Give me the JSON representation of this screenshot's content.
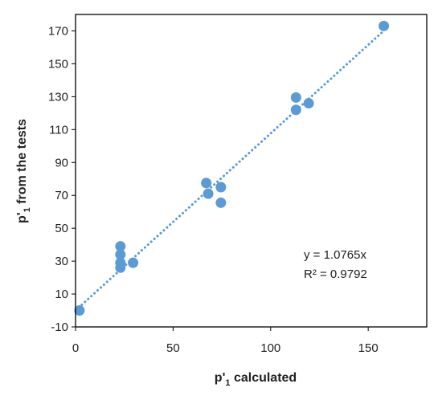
{
  "chart_data": {
    "type": "scatter",
    "title": "",
    "xlabel": {
      "prefix": "p'",
      "sub": "1",
      "suffix": " calculated"
    },
    "ylabel": {
      "prefix": "p'",
      "sub": "1",
      "suffix": " from the tests"
    },
    "xlim": [
      0,
      180
    ],
    "ylim": [
      -10,
      180
    ],
    "xticks": [
      0,
      50,
      100,
      150
    ],
    "yticks": [
      -10,
      10,
      30,
      50,
      70,
      90,
      110,
      130,
      150,
      170
    ],
    "grid": false,
    "colors": {
      "points": "#5b9bd5",
      "trendline": "#5b9bd5",
      "axes": "#000000"
    },
    "series": [
      {
        "points": [
          [
            2,
            0
          ],
          [
            23,
            39
          ],
          [
            23,
            34
          ],
          [
            23,
            29
          ],
          [
            23,
            26
          ],
          [
            29.5,
            29
          ],
          [
            67,
            77.5
          ],
          [
            68,
            71
          ],
          [
            74.5,
            75
          ],
          [
            74.5,
            65.5
          ],
          [
            113,
            129.5
          ],
          [
            113,
            122
          ],
          [
            119.5,
            126
          ],
          [
            158,
            173
          ]
        ]
      }
    ],
    "trendline": {
      "type": "linear",
      "slope": 1.0765,
      "intercept": 0,
      "style": "dotted",
      "x_range": [
        0,
        158
      ]
    },
    "annotations": {
      "equation": "y = 1.0765x",
      "r2": "R² = 0.9792"
    }
  }
}
